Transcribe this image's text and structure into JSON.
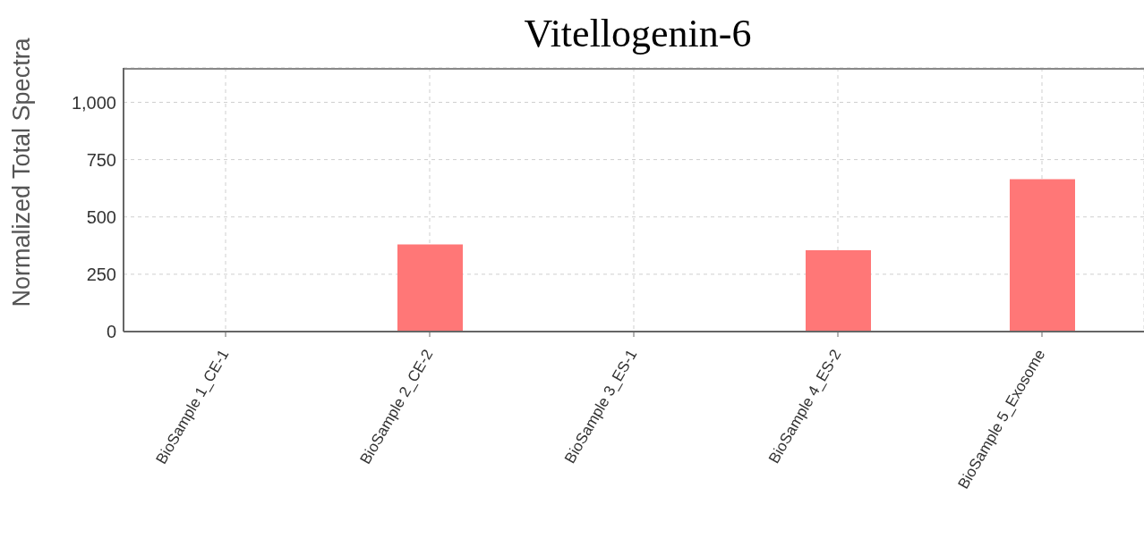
{
  "chart_data": {
    "type": "bar",
    "title": "Vitellogenin-6",
    "ylabel": "Normalized Total Spectra",
    "categories": [
      "BioSample 1_CE-1",
      "BioSample 2_CE-2",
      "BioSample 3_ES-1",
      "BioSample 4_ES-2",
      "BioSample 5_Exosome"
    ],
    "values": [
      0,
      380,
      0,
      355,
      665
    ],
    "color": "#ff7777",
    "ylim": [
      0,
      1150
    ],
    "yticks": [
      0,
      {
        "value": 250,
        "label": "250"
      },
      {
        "value": 500,
        "label": "500"
      },
      {
        "value": 750,
        "label": "750"
      },
      {
        "value": 1000,
        "label": "1,000"
      }
    ],
    "grid": true
  }
}
